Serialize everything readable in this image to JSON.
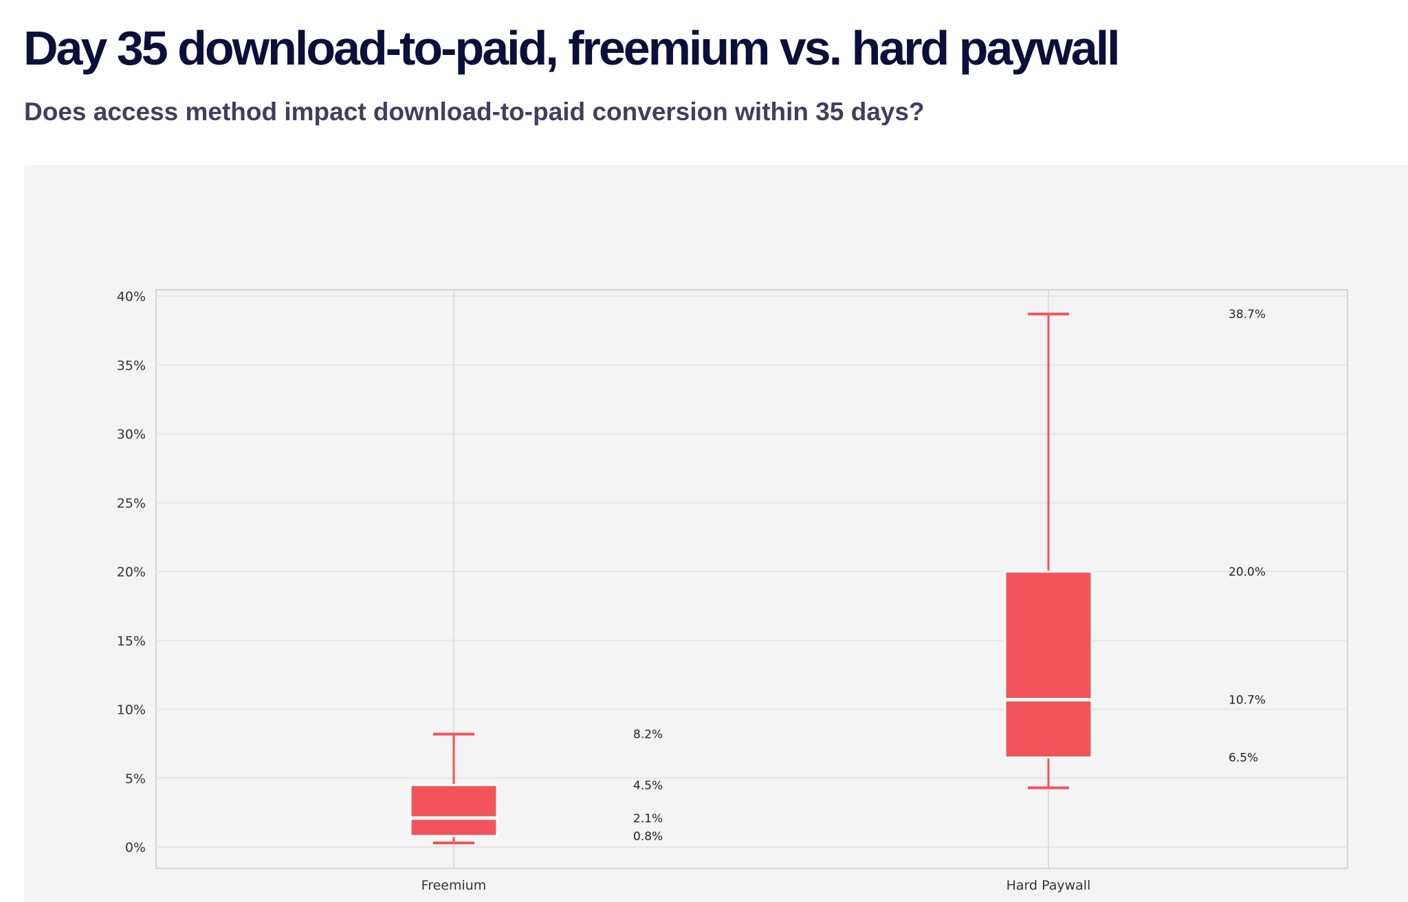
{
  "header": {
    "title": "Day 35 download-to-paid, freemium vs. hard paywall",
    "subtitle": "Does access method impact download-to-paid conversion within 35 days?"
  },
  "chart_data": {
    "type": "box",
    "categories": [
      "Freemium",
      "Hard Paywall"
    ],
    "series": [
      {
        "category": "Freemium",
        "whisker_low": 0.3,
        "q1": 0.8,
        "median": 2.1,
        "q3": 4.5,
        "whisker_high": 8.2,
        "labels": {
          "whisker_high": "8.2%",
          "q3": "4.5%",
          "median": "2.1%",
          "q1": "0.8%"
        }
      },
      {
        "category": "Hard Paywall",
        "whisker_low": 4.3,
        "q1": 6.5,
        "median": 10.7,
        "q3": 20.0,
        "whisker_high": 38.7,
        "labels": {
          "whisker_high": "38.7%",
          "q3": "20.0%",
          "median": "10.7%",
          "q1": "6.5%"
        }
      }
    ],
    "ylim": [
      -1.5,
      40.5
    ],
    "yticks": [
      0,
      5,
      10,
      15,
      20,
      25,
      30,
      35,
      40
    ],
    "ytick_labels": [
      "0%",
      "5%",
      "10%",
      "15%",
      "20%",
      "25%",
      "30%",
      "35%",
      "40%"
    ],
    "grid": true,
    "xlabel": "",
    "ylabel": "",
    "colors": {
      "box": "#f2545b",
      "median_line": "#ffffff",
      "median_label": "#a51c24",
      "label": "#222222",
      "panel": "#f4f4f4"
    }
  }
}
